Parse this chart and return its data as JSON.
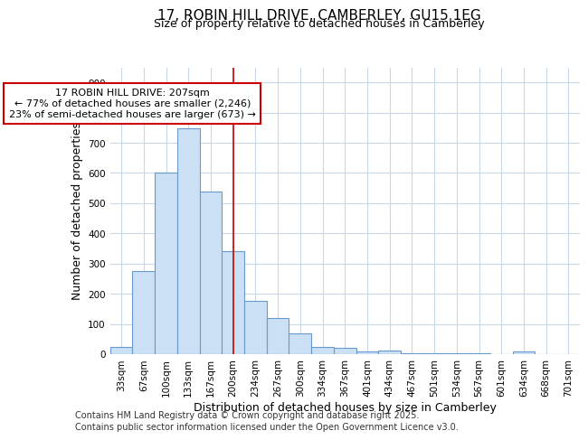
{
  "title_line1": "17, ROBIN HILL DRIVE, CAMBERLEY, GU15 1EG",
  "title_line2": "Size of property relative to detached houses in Camberley",
  "xlabel": "Distribution of detached houses by size in Camberley",
  "ylabel": "Number of detached properties",
  "categories": [
    "33sqm",
    "67sqm",
    "100sqm",
    "133sqm",
    "167sqm",
    "200sqm",
    "234sqm",
    "267sqm",
    "300sqm",
    "334sqm",
    "367sqm",
    "401sqm",
    "434sqm",
    "467sqm",
    "501sqm",
    "534sqm",
    "567sqm",
    "601sqm",
    "634sqm",
    "668sqm",
    "701sqm"
  ],
  "values": [
    25,
    275,
    600,
    748,
    538,
    340,
    178,
    120,
    68,
    25,
    22,
    8,
    12,
    4,
    4,
    2,
    2,
    1,
    10,
    1,
    0
  ],
  "bar_color": "#cce0f5",
  "bar_edge_color": "#6699cc",
  "vline_x": 5,
  "vline_color": "#cc0000",
  "annotation_text": "17 ROBIN HILL DRIVE: 207sqm\n← 77% of detached houses are smaller (2,246)\n23% of semi-detached houses are larger (673) →",
  "annotation_box_color": "white",
  "annotation_box_edge": "#cc0000",
  "ylim": [
    0,
    950
  ],
  "yticks": [
    0,
    100,
    200,
    300,
    400,
    500,
    600,
    700,
    800,
    900
  ],
  "bg_color": "#ffffff",
  "plot_bg_color": "#ffffff",
  "grid_color": "#c8d8e8",
  "footer_line1": "Contains HM Land Registry data © Crown copyright and database right 2025.",
  "footer_line2": "Contains public sector information licensed under the Open Government Licence v3.0.",
  "title_fontsize": 11,
  "subtitle_fontsize": 9,
  "xlabel_fontsize": 9,
  "ylabel_fontsize": 9,
  "tick_fontsize": 7.5,
  "annotation_fontsize": 8,
  "footer_fontsize": 7
}
